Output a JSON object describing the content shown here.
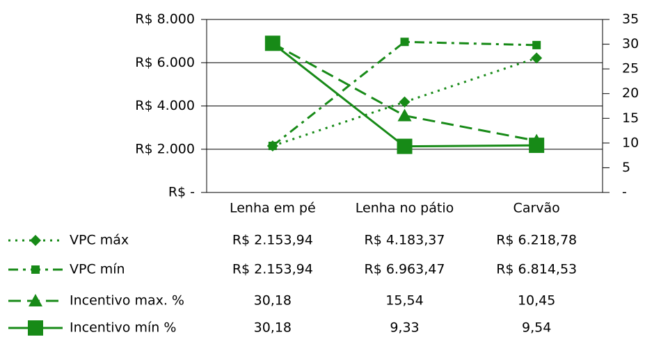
{
  "chart_data": {
    "type": "line",
    "categories": [
      "Lenha em pé",
      "Lenha no pátio",
      "Carvão"
    ],
    "ylim": [
      0,
      8000
    ],
    "yticks": [
      {
        "value": 0,
        "label": "R$ -"
      },
      {
        "value": 2000,
        "label": "R$ 2.000"
      },
      {
        "value": 4000,
        "label": "R$ 4.000"
      },
      {
        "value": 6000,
        "label": "R$ 6.000"
      },
      {
        "value": 8000,
        "label": "R$ 8.000"
      }
    ],
    "y2lim": [
      0,
      35
    ],
    "y2ticks": [
      {
        "value": 0,
        "label": "-"
      },
      5,
      10,
      15,
      20,
      25,
      30,
      35
    ],
    "grid": true,
    "series": [
      {
        "name": "VPC máx",
        "color": "#178a17",
        "dash": "dotted",
        "marker": "diamond",
        "values": [
          2153.94,
          4183.37,
          6218.78
        ],
        "value_labels": [
          "R$ 2.153,94",
          "R$ 4.183,37",
          "R$ 6.218,78"
        ]
      },
      {
        "name": "VPC mín",
        "color": "#178a17",
        "dash": "dashdot",
        "marker": "small-square",
        "values": [
          2153.94,
          6963.47,
          6814.53
        ],
        "value_labels": [
          "R$ 2.153,94",
          "R$ 6.963,47",
          "R$ 6.814,53"
        ]
      },
      {
        "name": "Incentivo max. %",
        "color": "#178a17",
        "dash": "dashed",
        "marker": "triangle",
        "axis": "y2",
        "values": [
          30.18,
          15.54,
          10.45
        ],
        "value_labels": [
          "30,18",
          "15,54",
          "10,45"
        ]
      },
      {
        "name": "Incentivo mín %",
        "color": "#178a17",
        "dash": "solid",
        "marker": "square",
        "axis": "y2",
        "values": [
          30.18,
          9.33,
          9.54
        ],
        "value_labels": [
          "30,18",
          "9,33",
          "9,54"
        ]
      }
    ]
  }
}
